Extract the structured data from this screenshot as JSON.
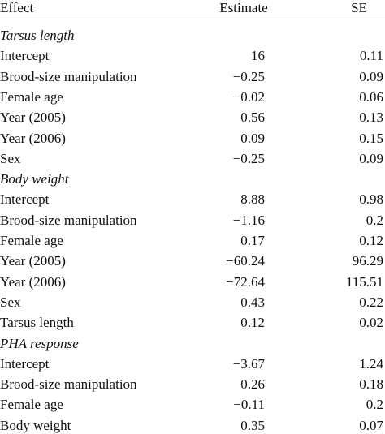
{
  "table": {
    "header": [
      "Effect",
      "Estimate",
      "SE"
    ],
    "sections": [
      {
        "title": "Tarsus length",
        "rows": [
          [
            "Intercept",
            "16",
            "0.11"
          ],
          [
            "Brood-size manipulation",
            "−0.25",
            "0.09"
          ],
          [
            "Female age",
            "−0.02",
            "0.06"
          ],
          [
            "Year (2005)",
            "0.56",
            "0.13"
          ],
          [
            "Year (2006)",
            "0.09",
            "0.15"
          ],
          [
            "Sex",
            "−0.25",
            "0.09"
          ]
        ]
      },
      {
        "title": "Body weight",
        "rows": [
          [
            "Intercept",
            "8.88",
            "0.98"
          ],
          [
            "Brood-size manipulation",
            "−1.16",
            "0.2"
          ],
          [
            "Female age",
            "0.17",
            "0.12"
          ],
          [
            "Year (2005)",
            "−60.24",
            "96.29"
          ],
          [
            "Year (2006)",
            "−72.64",
            "115.51"
          ],
          [
            "Sex",
            "0.43",
            "0.22"
          ],
          [
            "Tarsus length",
            "0.12",
            "0.02"
          ]
        ]
      },
      {
        "title": "PHA response",
        "rows": [
          [
            "Intercept",
            "−3.67",
            "1.24"
          ],
          [
            "Brood-size manipulation",
            "0.26",
            "0.18"
          ],
          [
            "Female age",
            "−0.11",
            "0.2"
          ],
          [
            "Body weight",
            "0.35",
            "0.07"
          ]
        ]
      }
    ]
  }
}
